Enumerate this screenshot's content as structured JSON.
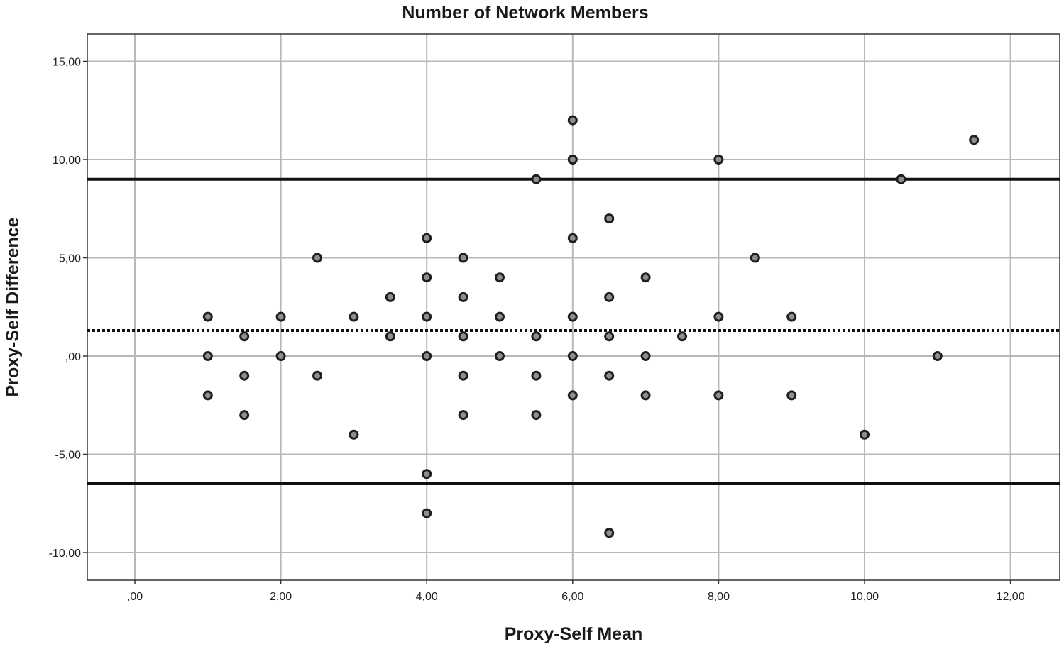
{
  "chart_data": {
    "type": "scatter",
    "title": "Number of Network Members",
    "xlabel": "Proxy-Self Mean",
    "ylabel": "Proxy-Self Difference",
    "xlim": [
      -0.5,
      13.3
    ],
    "ylim": [
      -11.5,
      16.5
    ],
    "x_ticks": [
      0,
      2,
      4,
      6,
      8,
      10,
      12
    ],
    "x_tick_labels": [
      ",00",
      "2,00",
      "4,00",
      "6,00",
      "8,00",
      "10,00",
      "12,00"
    ],
    "y_ticks": [
      15,
      10,
      5,
      0,
      -5,
      -10
    ],
    "y_tick_labels": [
      "15,00",
      "10,00",
      "5,00",
      ",00",
      "-5,00",
      "-10,00"
    ],
    "grid": true,
    "reference_lines": [
      {
        "kind": "upper-limit",
        "y": 9.0,
        "style": "solid"
      },
      {
        "kind": "mean-difference",
        "y": 1.3,
        "style": "dotted"
      },
      {
        "kind": "lower-limit",
        "y": -6.5,
        "style": "solid"
      }
    ],
    "points": [
      [
        1,
        2
      ],
      [
        1,
        0
      ],
      [
        1,
        -2
      ],
      [
        1.5,
        1
      ],
      [
        1.5,
        -1
      ],
      [
        1.5,
        -3
      ],
      [
        2,
        2
      ],
      [
        2,
        0
      ],
      [
        2.5,
        5
      ],
      [
        2.5,
        -1
      ],
      [
        3,
        2
      ],
      [
        3,
        -4
      ],
      [
        3.5,
        3
      ],
      [
        3.5,
        1
      ],
      [
        4,
        6
      ],
      [
        4,
        4
      ],
      [
        4,
        2
      ],
      [
        4,
        0
      ],
      [
        4,
        -6
      ],
      [
        4,
        -8
      ],
      [
        4.5,
        5
      ],
      [
        4.5,
        3
      ],
      [
        4.5,
        1
      ],
      [
        4.5,
        -1
      ],
      [
        4.5,
        -3
      ],
      [
        5,
        4
      ],
      [
        5,
        2
      ],
      [
        5,
        0
      ],
      [
        5.5,
        9
      ],
      [
        5.5,
        1
      ],
      [
        5.5,
        -1
      ],
      [
        5.5,
        -3
      ],
      [
        6,
        12
      ],
      [
        6,
        10
      ],
      [
        6,
        6
      ],
      [
        6,
        2
      ],
      [
        6,
        0
      ],
      [
        6,
        -2
      ],
      [
        6.5,
        7
      ],
      [
        6.5,
        3
      ],
      [
        6.5,
        1
      ],
      [
        6.5,
        -1
      ],
      [
        6.5,
        -9
      ],
      [
        7,
        4
      ],
      [
        7,
        0
      ],
      [
        7,
        -2
      ],
      [
        7.5,
        1
      ],
      [
        8,
        10
      ],
      [
        8,
        2
      ],
      [
        8,
        -2
      ],
      [
        8.5,
        5
      ],
      [
        9,
        2
      ],
      [
        9,
        -2
      ],
      [
        10,
        -4
      ],
      [
        10.5,
        9
      ],
      [
        11,
        0
      ],
      [
        11.5,
        11
      ]
    ]
  }
}
